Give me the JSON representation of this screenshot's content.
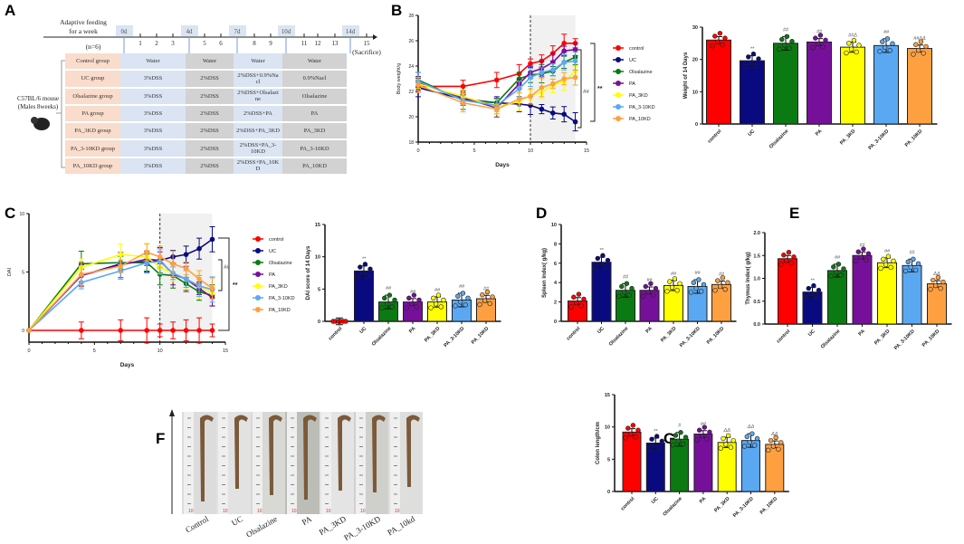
{
  "panels": {
    "A": "A",
    "B": "B",
    "C": "C",
    "D": "D",
    "E": "E",
    "F": "F",
    "G": "G"
  },
  "panel_a": {
    "adaptive": "Adaptive feeding",
    "adaptive2": "for a week",
    "n": "(n=6)",
    "sacrifice": "(Sacrifice)",
    "mouse": "C57BL/6 mouse",
    "mouse2": "(Males 8weeks)",
    "markers": [
      "0d",
      "4d",
      "7d",
      "10d",
      "14d"
    ],
    "days": [
      "1",
      "2",
      "3",
      "5",
      "6",
      "8",
      "9",
      "11",
      "12",
      "13",
      "15"
    ],
    "rows": [
      [
        "Control group",
        "Water",
        "Water",
        "Water",
        "Water"
      ],
      [
        "UC group",
        "3%DSS",
        "2%DSS",
        "2%DSS+0.9%Na cl",
        "0.9%Nacl"
      ],
      [
        "Olsalazine group",
        "3%DSS",
        "2%DSS",
        "2%DSS+Olsalazi ne",
        "Olsalazine"
      ],
      [
        "PA group",
        "3%DSS",
        "2%DSS",
        "2%DSS+PA",
        "PA"
      ],
      [
        "PA_3KD group",
        "3%DSS",
        "2%DSS",
        "2%DSS+PA_3KD",
        "PA_3KD"
      ],
      [
        "PA_3-10KD group",
        "3%DSS",
        "2%DSS",
        "2%DSS+PA_3-10KD",
        "PA_3-10KD"
      ],
      [
        "PA_10KD group",
        "3%DSS",
        "2%DSS",
        "2%DSS+PA_10K D",
        "PA_10KD"
      ]
    ]
  },
  "colors": {
    "control": "#ff0000",
    "UC": "#0a0a80",
    "Olsalazine": "#0b7a12",
    "PA": "#76109a",
    "PA_3KD": "#ffff00",
    "PA_3-10KD": "#5aa8f2",
    "PA_10KD": "#ffa040"
  },
  "panel_f": {
    "labels": [
      "Control",
      "UC",
      "Olsalazine",
      "PA",
      "PA_3KD",
      "PA_3-10KD",
      "PA_10kd"
    ]
  },
  "chart_data": [
    {
      "id": "B-line",
      "type": "line",
      "xlabel": "Days",
      "ylabel": "Body weight/g",
      "xlim": [
        0,
        15
      ],
      "ylim": [
        18,
        28
      ],
      "xticks": [
        0,
        5,
        10,
        15
      ],
      "yticks": [
        18,
        20,
        22,
        24,
        26,
        28
      ],
      "x": [
        0,
        4,
        7,
        9,
        10,
        11,
        12,
        13,
        14
      ],
      "series": [
        {
          "name": "control",
          "values": [
            22.4,
            22.4,
            22.9,
            23.4,
            24.2,
            24.4,
            25.0,
            25.8,
            25.8
          ]
        },
        {
          "name": "UC",
          "values": [
            22.3,
            21.4,
            21.1,
            21.0,
            20.9,
            20.6,
            20.3,
            20.2,
            19.6
          ]
        },
        {
          "name": "Olsalazine",
          "values": [
            22.9,
            21.3,
            21.1,
            23.0,
            23.3,
            23.4,
            23.6,
            24.3,
            24.7
          ]
        },
        {
          "name": "PA",
          "values": [
            22.7,
            21.5,
            20.7,
            22.6,
            23.5,
            23.8,
            24.3,
            25.2,
            25.3
          ]
        },
        {
          "name": "PA_3KD",
          "values": [
            22.6,
            21.6,
            20.8,
            21.2,
            21.7,
            21.9,
            22.5,
            22.8,
            23.6
          ]
        },
        {
          "name": "PA_3-10KD",
          "values": [
            22.8,
            21.3,
            20.9,
            22.2,
            23.1,
            23.5,
            23.7,
            24.3,
            24.4
          ]
        },
        {
          "name": "PA_10KD",
          "values": [
            22.5,
            21.1,
            20.6,
            21.4,
            21.6,
            22.3,
            22.6,
            23.0,
            23.1
          ]
        }
      ],
      "shaded_x": [
        10,
        14
      ],
      "dashed_x": 10,
      "annotations": [
        "##",
        "**"
      ]
    },
    {
      "id": "B-bar",
      "type": "bar",
      "ylabel": "Weight of 14 Days",
      "ylim": [
        0,
        30
      ],
      "yticks": [
        0,
        10,
        20,
        30
      ],
      "categories": [
        "control",
        "UC",
        "Olsalazine",
        "PA",
        "PA_3KD",
        "PA_3-10KD",
        "PA_10KD"
      ],
      "values": [
        26.0,
        19.6,
        25.0,
        25.4,
        23.8,
        24.3,
        23.4
      ],
      "labels": [
        "",
        "**",
        "##",
        "##",
        "##Δ",
        "##",
        "##ΔΔ"
      ]
    },
    {
      "id": "C-line",
      "type": "line",
      "xlabel": "Days",
      "ylabel": "DAI",
      "xlim": [
        0,
        15
      ],
      "ylim": [
        0,
        10
      ],
      "xticks": [
        0,
        5,
        10,
        15
      ],
      "yticks": [
        0,
        5,
        10
      ],
      "x": [
        0,
        4,
        7,
        9,
        10,
        11,
        12,
        13,
        14
      ],
      "series": [
        {
          "name": "control",
          "values": [
            0,
            0,
            0,
            0,
            0,
            0,
            0,
            0,
            0
          ]
        },
        {
          "name": "UC",
          "values": [
            0,
            4.7,
            5.7,
            5.9,
            6.0,
            6.3,
            6.5,
            7.0,
            7.8
          ]
        },
        {
          "name": "Olsalazine",
          "values": [
            0,
            5.7,
            5.8,
            5.8,
            4.8,
            4.7,
            4.0,
            3.3,
            3.0
          ]
        },
        {
          "name": "PA",
          "values": [
            0,
            4.7,
            5.6,
            6.1,
            6.0,
            4.8,
            4.4,
            3.6,
            2.8
          ]
        },
        {
          "name": "PA_3KD",
          "values": [
            0,
            5.4,
            6.5,
            6.3,
            5.4,
            4.9,
            4.4,
            3.8,
            3.2
          ]
        },
        {
          "name": "PA_3-10KD",
          "values": [
            0,
            4.1,
            5.1,
            5.8,
            5.9,
            4.9,
            4.4,
            3.8,
            3.5
          ]
        },
        {
          "name": "PA_10KD",
          "values": [
            0,
            4.8,
            5.5,
            6.7,
            6.3,
            5.7,
            5.3,
            4.4,
            3.6
          ]
        }
      ],
      "shaded_x": [
        10,
        14
      ],
      "dashed_x": 10,
      "annotations": [
        "##",
        "**"
      ]
    },
    {
      "id": "C-bar",
      "type": "bar",
      "ylabel": "DAI score of 14 Days",
      "ylim": [
        0,
        15
      ],
      "yticks": [
        0,
        5,
        10,
        15
      ],
      "categories": [
        "control",
        "UC",
        "Olsalazine",
        "PA",
        "PA_3KD",
        "PA_3-10KD",
        "PA_10KD"
      ],
      "values": [
        0,
        7.8,
        3.0,
        3.0,
        3.0,
        3.3,
        3.5
      ],
      "labels": [
        "",
        "**",
        "##",
        "##",
        "##",
        "##",
        "##"
      ]
    },
    {
      "id": "D-bar",
      "type": "bar",
      "ylabel": "Spleen index( g/kg)",
      "ylim": [
        0,
        10
      ],
      "yticks": [
        0,
        2,
        4,
        6,
        8,
        10
      ],
      "categories": [
        "control",
        "UC",
        "Olsalazine",
        "PA",
        "PA_3KD",
        "PA_3-10KD",
        "PA_10KD"
      ],
      "values": [
        2.1,
        6.1,
        3.2,
        3.2,
        3.7,
        3.6,
        3.8
      ],
      "labels": [
        "",
        "**",
        "##",
        "##",
        "##",
        "##",
        "##"
      ]
    },
    {
      "id": "E-bar",
      "type": "bar",
      "ylabel": "Thymus index( g/kg)",
      "ylim": [
        0,
        2
      ],
      "yticks": [
        "0.0",
        "0.5",
        "1.0",
        "1.5",
        "2.0"
      ],
      "categories": [
        "control",
        "UC",
        "Olsalazine",
        "PA",
        "PA_3KD",
        "PA_3-10KD",
        "PA_10KD"
      ],
      "values": [
        1.43,
        0.7,
        1.17,
        1.5,
        1.34,
        1.28,
        0.88
      ],
      "labels": [
        "",
        "**",
        "##",
        "##",
        "##",
        "##",
        "ΔΔ"
      ]
    },
    {
      "id": "G-bar",
      "type": "bar",
      "ylabel": "Colon length/cm",
      "ylim": [
        0,
        15
      ],
      "yticks": [
        0,
        5,
        10,
        15
      ],
      "categories": [
        "control",
        "UC",
        "Olsalazine",
        "PA",
        "PA_3KD",
        "PA_3-10KD",
        "PA_10KD"
      ],
      "values": [
        9.2,
        7.5,
        8.1,
        8.9,
        7.6,
        7.9,
        7.3
      ],
      "labels": [
        "",
        "**",
        "#",
        "##",
        "ΔΔ",
        "ΔΔ",
        "ΔΔ"
      ]
    }
  ]
}
